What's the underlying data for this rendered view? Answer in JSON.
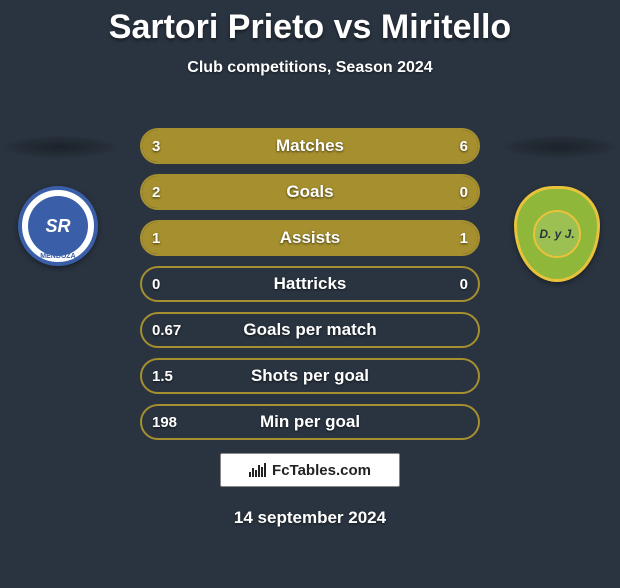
{
  "title": "Sartori Prieto vs Miritello",
  "subtitle": "Club competitions, Season 2024",
  "date": "14 september 2024",
  "footer_logo_text": "FcTables.com",
  "colors": {
    "background": "#2a3440",
    "bar_fill": "#a58f2e",
    "bar_border": "#a58f2e",
    "text": "#ffffff"
  },
  "teams": {
    "left": {
      "badge_initials": "SR",
      "badge_ring_text": "INDEPENDIENTE RIVADAVIA · MENDOZA",
      "badge_outer_color": "#3a5fa8",
      "badge_inner_color": "#3a5fa8"
    },
    "right": {
      "badge_text": "D. y J.",
      "badge_bg": "#8fb83a",
      "badge_border": "#e8c23a"
    }
  },
  "bars": [
    {
      "label": "Matches",
      "left_val": "3",
      "right_val": "6",
      "left_pct": 33.3,
      "right_pct": 66.7
    },
    {
      "label": "Goals",
      "left_val": "2",
      "right_val": "0",
      "left_pct": 100,
      "right_pct": 0
    },
    {
      "label": "Assists",
      "left_val": "1",
      "right_val": "1",
      "left_pct": 50,
      "right_pct": 50
    },
    {
      "label": "Hattricks",
      "left_val": "0",
      "right_val": "0",
      "left_pct": 0,
      "right_pct": 0
    },
    {
      "label": "Goals per match",
      "left_val": "0.67",
      "right_val": "",
      "left_pct": 0,
      "right_pct": 0
    },
    {
      "label": "Shots per goal",
      "left_val": "1.5",
      "right_val": "",
      "left_pct": 0,
      "right_pct": 0
    },
    {
      "label": "Min per goal",
      "left_val": "198",
      "right_val": "",
      "left_pct": 0,
      "right_pct": 0
    }
  ]
}
